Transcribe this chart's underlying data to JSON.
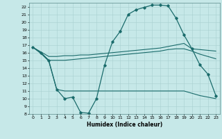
{
  "xlabel": "Humidex (Indice chaleur)",
  "xlim": [
    -0.5,
    23.5
  ],
  "ylim": [
    8,
    22.5
  ],
  "yticks": [
    8,
    9,
    10,
    11,
    12,
    13,
    14,
    15,
    16,
    17,
    18,
    19,
    20,
    21,
    22
  ],
  "xticks": [
    0,
    1,
    2,
    3,
    4,
    5,
    6,
    7,
    8,
    9,
    10,
    11,
    12,
    13,
    14,
    15,
    16,
    17,
    18,
    19,
    20,
    21,
    22,
    23
  ],
  "bg_color": "#c6e8e8",
  "line_color": "#1a6b6b",
  "figsize": [
    3.2,
    2.0
  ],
  "dpi": 100,
  "lines": [
    {
      "x": [
        0,
        1,
        2,
        3,
        4,
        5,
        6,
        7,
        8,
        9,
        10,
        11,
        12,
        13,
        14,
        15,
        16,
        17,
        18,
        19,
        20,
        21,
        22,
        23
      ],
      "y": [
        16.7,
        16.0,
        15.0,
        11.2,
        10.0,
        10.2,
        8.2,
        8.1,
        10.0,
        14.3,
        17.4,
        18.8,
        21.0,
        21.6,
        21.9,
        22.2,
        22.2,
        22.1,
        20.5,
        18.3,
        16.5,
        14.4,
        13.2,
        10.4
      ],
      "marker": "D",
      "markersize": 1.8,
      "lw": 0.9
    },
    {
      "x": [
        0,
        1,
        2,
        3,
        4,
        5,
        6,
        7,
        8,
        9,
        10,
        11,
        12,
        13,
        14,
        15,
        16,
        17,
        18,
        19,
        20,
        21,
        22,
        23
      ],
      "y": [
        16.7,
        16.1,
        15.5,
        15.5,
        15.6,
        15.6,
        15.7,
        15.7,
        15.8,
        15.9,
        16.0,
        16.1,
        16.2,
        16.3,
        16.4,
        16.5,
        16.6,
        16.8,
        17.0,
        17.2,
        16.5,
        16.4,
        16.3,
        16.2
      ],
      "marker": null,
      "markersize": 0,
      "lw": 0.8
    },
    {
      "x": [
        0,
        1,
        2,
        3,
        4,
        5,
        6,
        7,
        8,
        9,
        10,
        11,
        12,
        13,
        14,
        15,
        16,
        17,
        18,
        19,
        20,
        21,
        22,
        23
      ],
      "y": [
        16.7,
        16.0,
        15.0,
        15.0,
        15.0,
        15.1,
        15.2,
        15.3,
        15.4,
        15.5,
        15.6,
        15.7,
        15.8,
        15.9,
        16.0,
        16.1,
        16.2,
        16.4,
        16.5,
        16.5,
        16.2,
        15.8,
        15.5,
        15.2
      ],
      "marker": null,
      "markersize": 0,
      "lw": 0.8
    },
    {
      "x": [
        0,
        1,
        2,
        3,
        4,
        5,
        6,
        7,
        8,
        9,
        10,
        11,
        12,
        13,
        14,
        15,
        16,
        17,
        18,
        19,
        20,
        21,
        22,
        23
      ],
      "y": [
        16.7,
        15.9,
        14.9,
        11.2,
        11.0,
        11.0,
        11.0,
        11.0,
        11.0,
        11.0,
        11.0,
        11.0,
        11.0,
        11.0,
        11.0,
        11.0,
        11.0,
        11.0,
        11.0,
        11.0,
        10.7,
        10.4,
        10.2,
        10.0
      ],
      "marker": null,
      "markersize": 0,
      "lw": 0.8
    }
  ]
}
